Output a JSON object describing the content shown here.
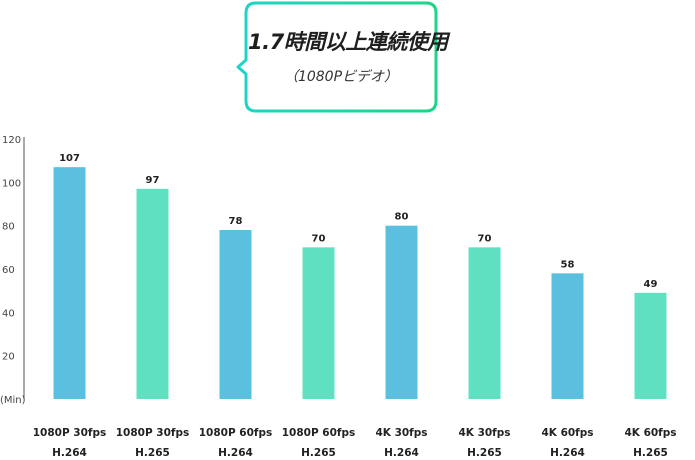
{
  "callout": {
    "title": "1.7時間以上連続使用",
    "subtitle": "（1080Pビデオ）",
    "border_color": "#1fd487"
  },
  "chart_data": {
    "type": "bar",
    "unit_label": "(Min)",
    "ylim": [
      0,
      120
    ],
    "yticks": [
      20,
      40,
      60,
      80,
      100,
      120
    ],
    "categories": [
      [
        "1080P 30fps",
        "H.264"
      ],
      [
        "1080P 30fps",
        "H.265"
      ],
      [
        "1080P 60fps",
        "H.264"
      ],
      [
        "1080P 60fps",
        "H.265"
      ],
      [
        "4K 30fps",
        "H.264"
      ],
      [
        "4K 30fps",
        "H.265"
      ],
      [
        "4K 60fps",
        "H.264"
      ],
      [
        "4K 60fps",
        "H.265"
      ]
    ],
    "values": [
      107,
      97,
      78,
      70,
      80,
      70,
      58,
      49
    ],
    "bar_colors": [
      "#5bc0df",
      "#5fe0c0",
      "#5bc0df",
      "#5fe0c0",
      "#5bc0df",
      "#5fe0c0",
      "#5bc0df",
      "#5fe0c0"
    ],
    "grid": false,
    "legend": "none"
  }
}
